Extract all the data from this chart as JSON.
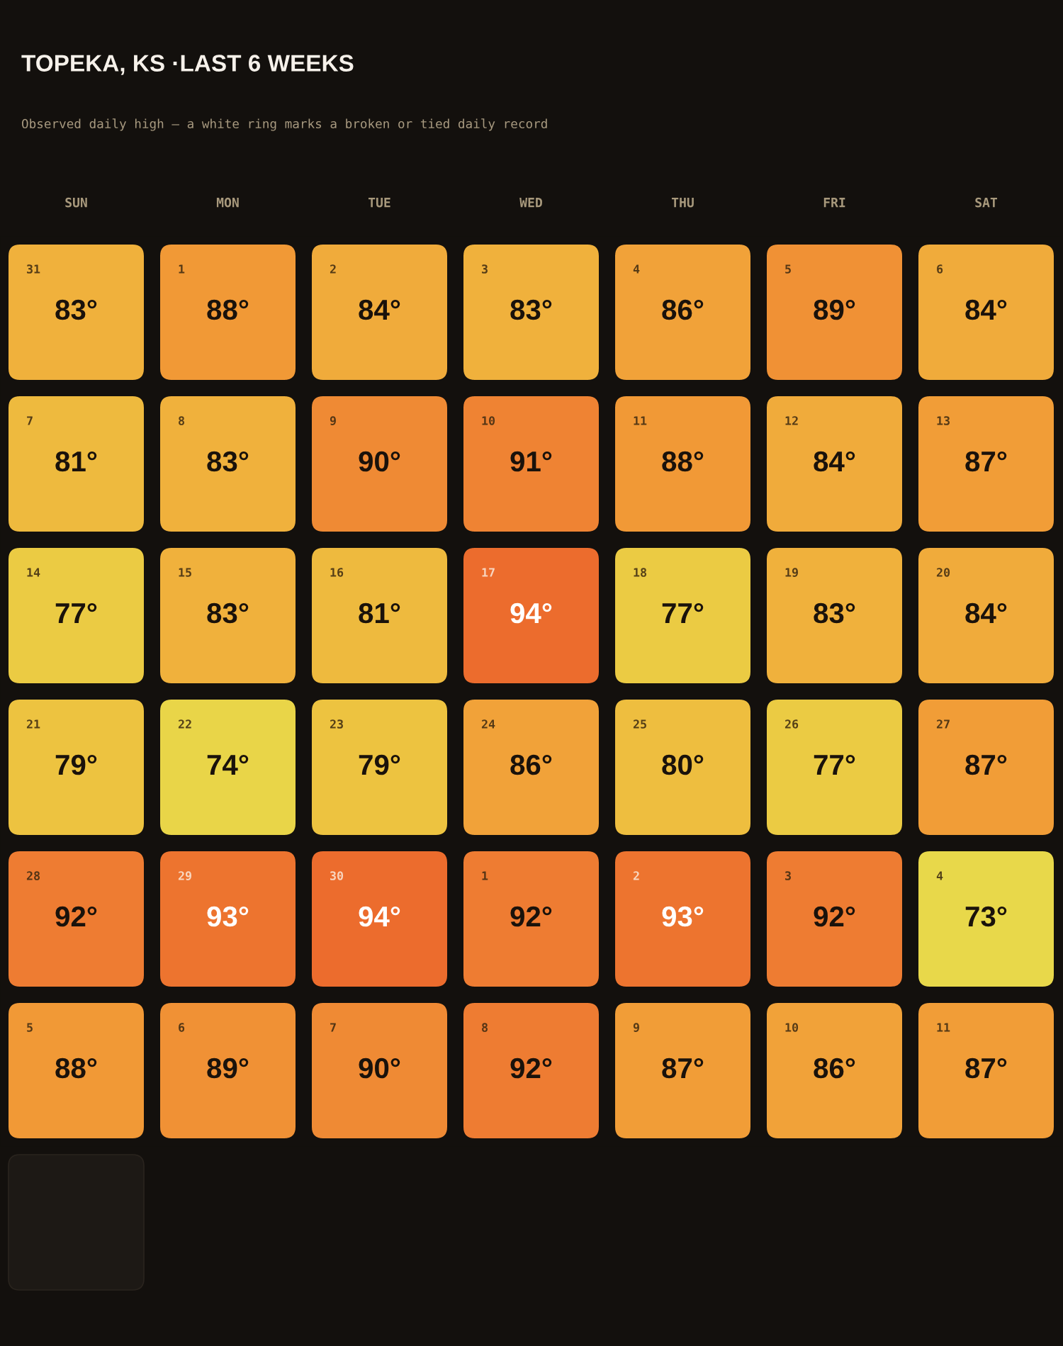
{
  "chart_data": {
    "type": "heatmap",
    "title": "TOPEKA, KS ·LAST 6 WEEKS",
    "subtitle": "Observed daily high — a white ring marks a broken or tied daily record",
    "categories": [
      "SUN",
      "MON",
      "TUE",
      "WED",
      "THU",
      "FRI",
      "SAT"
    ],
    "y_categories": [
      null,
      null,
      null,
      null,
      null,
      null
    ],
    "tick_labels": "x",
    "cells": [
      [
        83,
        88,
        84,
        83,
        86,
        89,
        84
      ],
      [
        81,
        83,
        90,
        91,
        88,
        84,
        87
      ],
      [
        77,
        83,
        81,
        94,
        77,
        83,
        84
      ],
      [
        79,
        74,
        79,
        86,
        80,
        77,
        87
      ],
      [
        92,
        93,
        94,
        92,
        93,
        92,
        73
      ],
      [
        88,
        89,
        90,
        92,
        87,
        86,
        87
      ]
    ],
    "cell_labels": [
      [
        "83°",
        "88°",
        "84°",
        "83°",
        "86°",
        "89°",
        "84°"
      ],
      [
        "81°",
        "83°",
        "90°",
        "91°",
        "88°",
        "84°",
        "87°"
      ],
      [
        "77°",
        "83°",
        "81°",
        "94°",
        "77°",
        "83°",
        "84°"
      ],
      [
        "79°",
        "74°",
        "79°",
        "86°",
        "80°",
        "77°",
        "87°"
      ],
      [
        "92°",
        "93°",
        "94°",
        "92°",
        "93°",
        "92°",
        "73°"
      ],
      [
        "88°",
        "89°",
        "90°",
        "92°",
        "87°",
        "86°",
        "87°"
      ]
    ],
    "annotations": [
      "31",
      "1",
      "2",
      "3",
      "4",
      "5",
      "6",
      "7",
      "8",
      "9",
      "10",
      "11",
      "12",
      "13",
      "14",
      "15",
      "16",
      "17",
      "18",
      "19",
      "20",
      "21",
      "22",
      "23",
      "24",
      "25",
      "26",
      "27",
      "28",
      "29",
      "30",
      "1",
      "2",
      "3",
      "4",
      "5",
      "6",
      "7",
      "8",
      "9",
      "10",
      "11"
    ]
  }
}
